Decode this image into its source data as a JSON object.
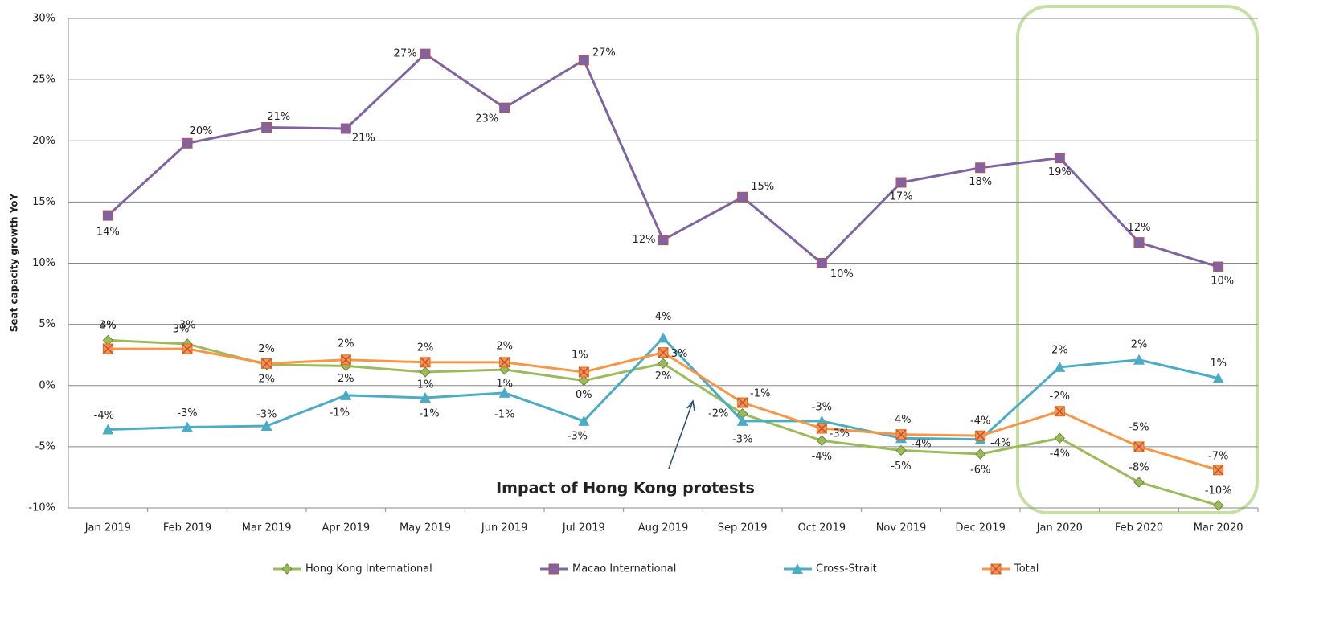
{
  "chart_data": {
    "type": "line",
    "y_label": "Seat capacity growth YoY",
    "annotation": "Impact of Hong Kong protests",
    "categories": [
      "Jan 2019",
      "Feb 2019",
      "Mar 2019",
      "Apr 2019",
      "May 2019",
      "Jun 2019",
      "Jul 2019",
      "Aug 2019",
      "Sep 2019",
      "Oct 2019",
      "Nov 2019",
      "Dec 2019",
      "Jan 2020",
      "Feb 2020",
      "Mar 2020"
    ],
    "ylim": [
      -10,
      30
    ],
    "yticks": [
      {
        "value": -10,
        "label": "-10%"
      },
      {
        "value": -5,
        "label": "-5%"
      },
      {
        "value": 0,
        "label": "0%"
      },
      {
        "value": 5,
        "label": "5%"
      },
      {
        "value": 10,
        "label": "10%"
      },
      {
        "value": 15,
        "label": "15%"
      },
      {
        "value": 20,
        "label": "20%"
      },
      {
        "value": 25,
        "label": "25%"
      },
      {
        "value": 30,
        "label": "30%"
      }
    ],
    "grid": true,
    "legend": "bottom",
    "series": [
      {
        "name": "Hong Kong International",
        "color": "#9bbb59",
        "marker": "diamond",
        "values": [
          3.7,
          3.4,
          1.7,
          1.6,
          1.1,
          1.3,
          0.4,
          1.8,
          -2.3,
          -4.5,
          -5.3,
          -5.6,
          -4.3,
          -7.9,
          -9.8
        ],
        "value_labels": [
          "4%",
          "3%",
          "2%",
          "2%",
          "1%",
          "1%",
          "0%",
          "2%",
          "-2%",
          "-4%",
          "-5%",
          "-6%",
          "-4%",
          "-8%",
          "-10%"
        ]
      },
      {
        "name": "Macao International",
        "color": "#8064a2",
        "marker": "square",
        "values": [
          13.9,
          19.8,
          21.1,
          21.0,
          27.1,
          22.7,
          26.6,
          11.9,
          15.4,
          10.0,
          16.6,
          17.8,
          18.6,
          11.7,
          9.7
        ],
        "value_labels": [
          "14%",
          "20%",
          "21%",
          "21%",
          "27%",
          "23%",
          "27%",
          "12%",
          "15%",
          "10%",
          "17%",
          "18%",
          "19%",
          "12%",
          "10%"
        ]
      },
      {
        "name": "Cross-Strait",
        "color": "#4bacc6",
        "marker": "triangle",
        "values": [
          -3.6,
          -3.4,
          -3.3,
          -0.8,
          -1.0,
          -0.6,
          -2.9,
          3.9,
          -2.9,
          -2.9,
          -4.3,
          -4.4,
          1.5,
          2.1,
          0.6
        ],
        "value_labels": [
          "-4%",
          "-3%",
          "-3%",
          "-1%",
          "-1%",
          "-1%",
          "-3%",
          "4%",
          "-3%",
          "-3%",
          "-4%",
          "-4%",
          "2%",
          "2%",
          "1%"
        ]
      },
      {
        "name": "Total",
        "color": "#f79646",
        "marker": "xsquare",
        "values": [
          3.0,
          3.0,
          1.8,
          2.1,
          1.9,
          1.9,
          1.1,
          2.7,
          -1.4,
          -3.5,
          -4.0,
          -4.1,
          -2.1,
          -5.0,
          -6.9
        ],
        "value_labels": [
          "3%",
          "3%",
          "2%",
          "2%",
          "2%",
          "2%",
          "1%",
          "3%",
          "-1%",
          "-3%",
          "-4%",
          "-4%",
          "-2%",
          "-5%",
          "-7%"
        ]
      }
    ]
  }
}
